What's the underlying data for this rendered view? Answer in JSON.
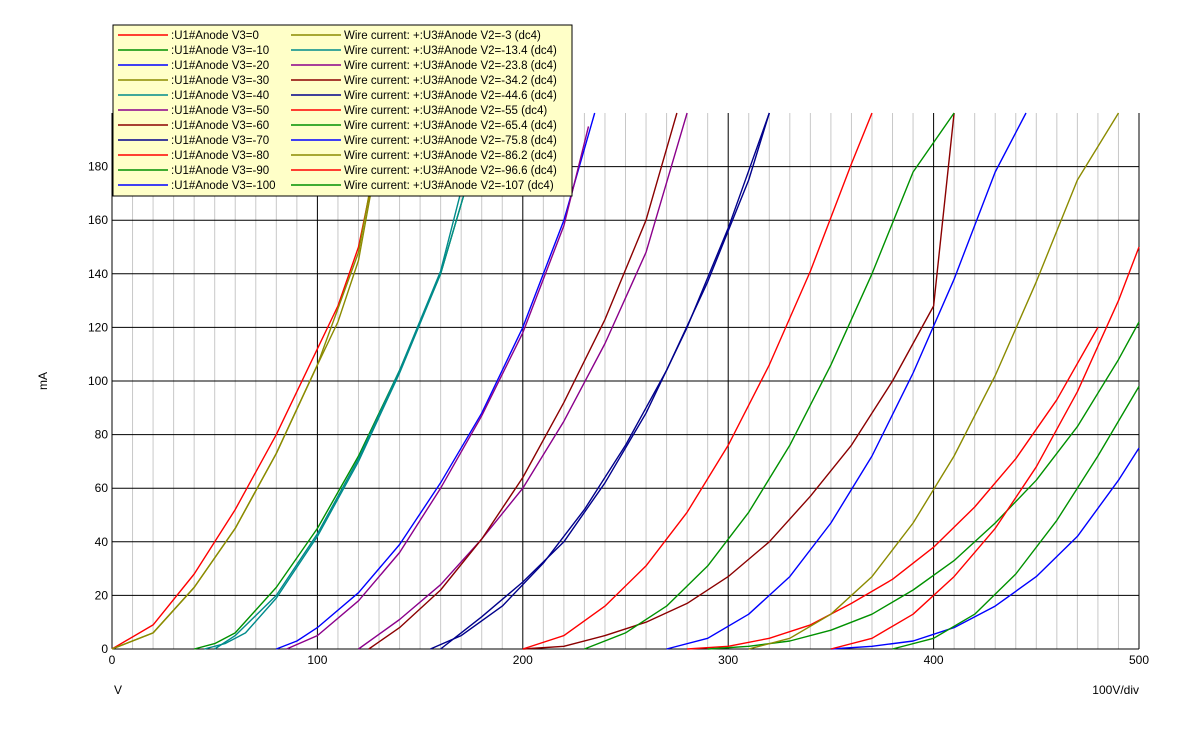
{
  "chart_data": {
    "type": "line",
    "title": "",
    "xlabel": "V",
    "ylabel": "mA",
    "xunit": "100V/div",
    "xlim": [
      0,
      500
    ],
    "ylim": [
      0,
      200
    ],
    "xticks": [
      "0",
      "100",
      "200",
      "300",
      "400",
      "500"
    ],
    "yticks": [
      "0",
      "20",
      "40",
      "60",
      "80",
      "100",
      "120",
      "140",
      "160",
      "180"
    ],
    "grid": "major and minor",
    "legend_position": "top-left",
    "series_groups": [
      {
        "group": "U1",
        "series": [
          {
            "name": ":U1#Anode V3=0",
            "color": "#ff0000",
            "x": [
              0,
              20,
              40,
              60,
              80,
              100,
              110,
              120,
              130
            ],
            "y": [
              0,
              9,
              28,
              52,
              80,
              112,
              128,
              150,
              187
            ]
          },
          {
            "name": ":U1#Anode V3=-10",
            "color": "#009100",
            "x": [
              40,
              50,
              60,
              80,
              100,
              120,
              140,
              160,
              180
            ],
            "y": [
              0,
              2,
              6,
              23,
              45,
              72,
              104,
              140,
              192
            ]
          },
          {
            "name": ":U1#Anode V3=-20",
            "color": "#0000ff",
            "x": [
              80,
              90,
              100,
              120,
              140,
              160,
              180,
              200,
              220,
              235
            ],
            "y": [
              0,
              3,
              8,
              21,
              39,
              62,
              88,
              120,
              160,
              200
            ]
          },
          {
            "name": ":U1#Anode V3=-30",
            "color": "#8b8b00",
            "x": [
              0,
              20,
              40,
              60,
              80,
              100,
              110,
              120,
              130
            ],
            "y": [
              0,
              6,
              23,
              45,
              73,
              106,
              122,
              145,
              187
            ]
          },
          {
            "name": ":U1#Anode V3=-40",
            "color": "#008b8b",
            "x": [
              45,
              55,
              65,
              80,
              100,
              120,
              140,
              160,
              180
            ],
            "y": [
              0,
              2,
              6,
              19,
              42,
              70,
              103,
              140,
              192
            ]
          },
          {
            "name": ":U1#Anode V3=-50",
            "color": "#8b008b",
            "x": [
              120,
              140,
              160,
              180,
              200,
              220,
              240,
              260,
              280
            ],
            "y": [
              0,
              11,
              24,
              41,
              60,
              85,
              114,
              148,
              200
            ]
          },
          {
            "name": ":U1#Anode V3=-60",
            "color": "#8b0000",
            "x": [
              200,
              220,
              240,
              260,
              280,
              300,
              320,
              340,
              360,
              380,
              400,
              410
            ],
            "y": [
              0,
              1,
              5,
              10,
              17,
              27,
              40,
              57,
              76,
              100,
              128,
              200
            ]
          },
          {
            "name": ":U1#Anode V3=-70",
            "color": "#00008b",
            "x": [
              160,
              180,
              200,
              220,
              240,
              260,
              280,
              300,
              320
            ],
            "y": [
              0,
              12,
              25,
              40,
              62,
              88,
              120,
              157,
              200
            ]
          },
          {
            "name": ":U1#Anode V3=-80",
            "color": "#ff0000",
            "x": [
              280,
              300,
              320,
              340,
              360,
              380,
              400,
              420,
              440,
              460,
              480
            ],
            "y": [
              0,
              1,
              4,
              9,
              17,
              26,
              38,
              53,
              71,
              93,
              120
            ]
          },
          {
            "name": ":U1#Anode V3=-90",
            "color": "#009100",
            "x": [
              290,
              310,
              330,
              350,
              370,
              390,
              410,
              430,
              450,
              470,
              490,
              500
            ],
            "y": [
              0,
              1,
              3,
              7,
              13,
              22,
              33,
              47,
              63,
              83,
              108,
              122
            ]
          },
          {
            "name": ":U1#Anode V3=-100",
            "color": "#0000ff",
            "x": [
              350,
              370,
              390,
              410,
              430,
              450,
              470,
              490,
              500
            ],
            "y": [
              0,
              1,
              3,
              8,
              16,
              27,
              42,
              63,
              75
            ]
          }
        ]
      },
      {
        "group": "U3",
        "series": [
          {
            "name": "Wire current: +:U3#Anode V2=-3 (dc4)",
            "color": "#8b8b00",
            "x": [
              0,
              20,
              40,
              60,
              80,
              100,
              120,
              130
            ],
            "y": [
              0,
              6,
              23,
              45,
              73,
              106,
              148,
              190
            ]
          },
          {
            "name": "Wire current: +:U3#Anode V2=-13.4 (dc4)",
            "color": "#008b8b",
            "x": [
              50,
              60,
              80,
              100,
              120,
              140,
              160,
              178
            ],
            "y": [
              0,
              5,
              20,
              43,
              71,
              104,
              141,
              195
            ]
          },
          {
            "name": "Wire current: +:U3#Anode V2=-23.8 (dc4)",
            "color": "#8b008b",
            "x": [
              85,
              100,
              120,
              140,
              160,
              180,
              200,
              220,
              232
            ],
            "y": [
              0,
              5,
              18,
              36,
              60,
              87,
              118,
              158,
              195
            ]
          },
          {
            "name": "Wire current: +:U3#Anode V2=-34.2 (dc4)",
            "color": "#8b0000",
            "x": [
              125,
              140,
              160,
              180,
              200,
              220,
              240,
              260,
              275
            ],
            "y": [
              0,
              8,
              22,
              41,
              64,
              92,
              123,
              160,
              200
            ]
          },
          {
            "name": "Wire current: +:U3#Anode V2=-44.6 (dc4)",
            "color": "#00008b",
            "x": [
              155,
              170,
              190,
              210,
              230,
              250,
              270,
              290,
              310,
              320
            ],
            "y": [
              0,
              5,
              16,
              32,
              52,
              76,
              104,
              137,
              175,
              200
            ]
          },
          {
            "name": "Wire current: +:U3#Anode V2=-55 (dc4)",
            "color": "#ff0000",
            "x": [
              200,
              220,
              240,
              260,
              280,
              300,
              320,
              340,
              360,
              370
            ],
            "y": [
              0,
              5,
              16,
              31,
              51,
              76,
              106,
              141,
              181,
              200
            ]
          },
          {
            "name": "Wire current: +:U3#Anode V2=-65.4 (dc4)",
            "color": "#009100",
            "x": [
              230,
              250,
              270,
              290,
              310,
              330,
              350,
              370,
              390,
              410
            ],
            "y": [
              0,
              6,
              16,
              31,
              51,
              76,
              106,
              140,
              178,
              200
            ]
          },
          {
            "name": "Wire current: +:U3#Anode V2=-75.8 (dc4)",
            "color": "#0000ff",
            "x": [
              270,
              290,
              310,
              330,
              350,
              370,
              390,
              410,
              430,
              445
            ],
            "y": [
              0,
              4,
              13,
              27,
              47,
              72,
              103,
              138,
              178,
              200
            ]
          },
          {
            "name": "Wire current: +:U3#Anode V2=-86.2 (dc4)",
            "color": "#8b8b00",
            "x": [
              310,
              330,
              350,
              370,
              390,
              410,
              430,
              450,
              470,
              490
            ],
            "y": [
              0,
              4,
              13,
              27,
              47,
              72,
              102,
              137,
              175,
              200
            ]
          },
          {
            "name": "Wire current: +:U3#Anode V2=-96.6 (dc4)",
            "color": "#ff0000",
            "x": [
              350,
              370,
              390,
              410,
              430,
              450,
              470,
              490,
              500
            ],
            "y": [
              0,
              4,
              13,
              27,
              45,
              68,
              96,
              130,
              150
            ]
          },
          {
            "name": "Wire current: +:U3#Anode V2=-107 (dc4)",
            "color": "#009100",
            "x": [
              380,
              400,
              420,
              440,
              460,
              480,
              500
            ],
            "y": [
              0,
              4,
              13,
              28,
              48,
              72,
              98
            ]
          }
        ]
      }
    ]
  }
}
